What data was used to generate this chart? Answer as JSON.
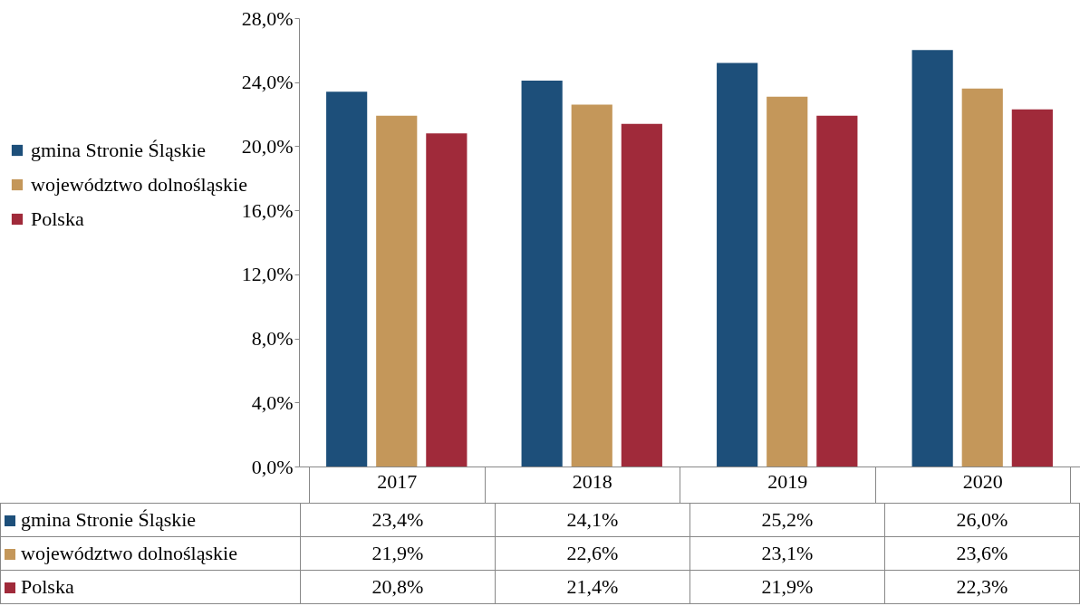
{
  "chart_data": {
    "type": "bar",
    "categories": [
      "2017",
      "2018",
      "2019",
      "2020"
    ],
    "series": [
      {
        "name": "gmina Stronie Śląskie",
        "color": "#1d4f7a",
        "values": [
          23.4,
          24.1,
          25.2,
          26.0
        ],
        "value_labels": [
          "23,4%",
          "24,1%",
          "25,2%",
          "26,0%"
        ]
      },
      {
        "name": "województwo dolnośląskie",
        "color": "#c4975a",
        "values": [
          21.9,
          22.6,
          23.1,
          23.6
        ],
        "value_labels": [
          "21,9%",
          "22,6%",
          "23,1%",
          "23,6%"
        ]
      },
      {
        "name": "Polska",
        "color": "#a02a3a",
        "values": [
          20.8,
          21.4,
          21.9,
          22.3
        ],
        "value_labels": [
          "20,8%",
          "21,4%",
          "21,9%",
          "22,3%"
        ]
      }
    ],
    "ylim": [
      0,
      28
    ],
    "yticks": [
      {
        "value": 0,
        "label": "0,0%"
      },
      {
        "value": 4,
        "label": "4,0%"
      },
      {
        "value": 8,
        "label": "8,0%"
      },
      {
        "value": 12,
        "label": "12,0%"
      },
      {
        "value": 16,
        "label": "16,0%"
      },
      {
        "value": 20,
        "label": "20,0%"
      },
      {
        "value": 24,
        "label": "24,0%"
      },
      {
        "value": 28,
        "label": "28,0%"
      }
    ],
    "grid": false,
    "legend": "left"
  }
}
